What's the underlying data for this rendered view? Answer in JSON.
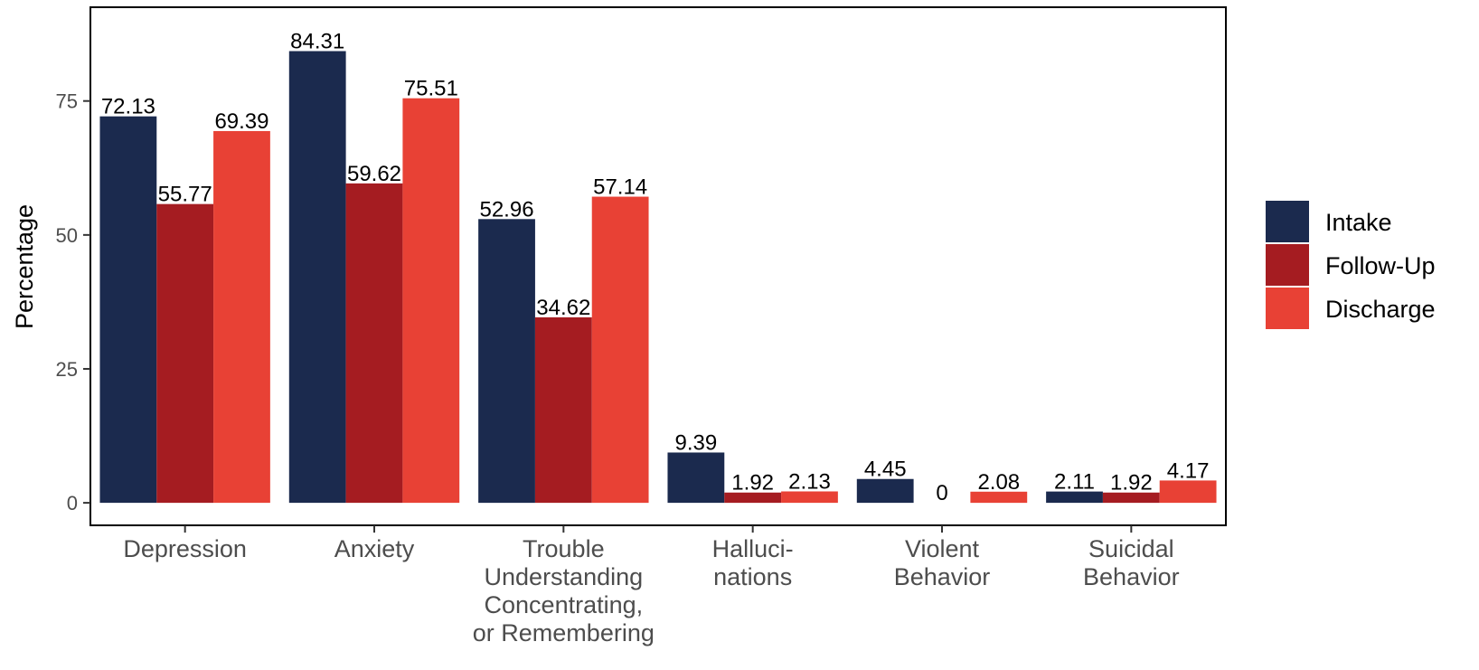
{
  "chart_data": {
    "type": "bar",
    "categories": [
      [
        "Depression"
      ],
      [
        "Anxiety"
      ],
      [
        "Trouble",
        "Understanding",
        "Concentrating,",
        "or Remembering"
      ],
      [
        "Halluci-",
        "nations"
      ],
      [
        "Violent",
        "Behavior"
      ],
      [
        "Suicidal",
        "Behavior"
      ]
    ],
    "series": [
      {
        "name": "Intake",
        "color": "#1b2a4e",
        "values": [
          72.13,
          84.31,
          52.96,
          9.39,
          4.45,
          2.11
        ],
        "labels": [
          "72.13",
          "84.31",
          "52.96",
          "9.39",
          "4.45",
          "2.11"
        ]
      },
      {
        "name": "Follow-Up",
        "color": "#a51c21",
        "values": [
          55.77,
          59.62,
          34.62,
          1.92,
          0,
          1.92
        ],
        "labels": [
          "55.77",
          "59.62",
          "34.62",
          "1.92",
          "0",
          "1.92"
        ]
      },
      {
        "name": "Discharge",
        "color": "#e84135",
        "values": [
          69.39,
          75.51,
          57.14,
          2.13,
          2.08,
          4.17
        ],
        "labels": [
          "69.39",
          "75.51",
          "57.14",
          "2.13",
          "2.08",
          "4.17"
        ]
      }
    ],
    "ylabel": "Percentage",
    "yticks": [
      0,
      25,
      50,
      75
    ],
    "ylim": [
      -4.2,
      92.5
    ],
    "grid": false,
    "legend_position": "right"
  }
}
